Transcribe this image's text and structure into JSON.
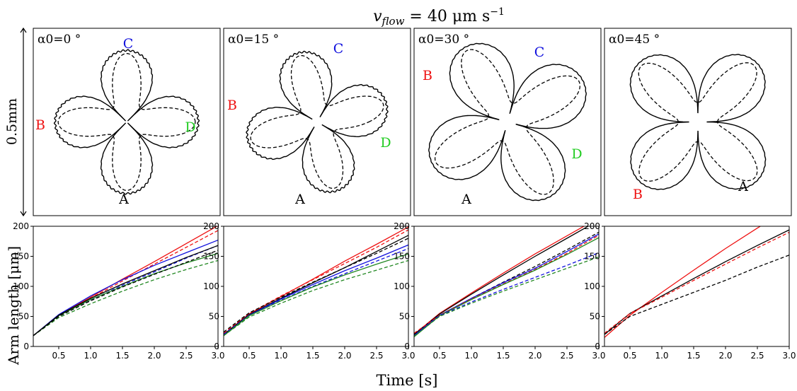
{
  "suptitle": "v_flow = 40 μm s⁻¹",
  "suptitle_parts": {
    "var": "v",
    "sub": "flow",
    "rest": " = 40 μm s",
    "sup": "−1"
  },
  "scale_label": "0.5mm",
  "y_label": "Arm length [μm]",
  "x_label": "Time [s]",
  "colors": {
    "A": "#000000",
    "B": "#ee1111",
    "C": "#1111dd",
    "D": "#22cc22",
    "line_green": "#228822"
  },
  "morph_panels": [
    {
      "angle_label": "α0=0 °",
      "angle": 0,
      "labels": [
        {
          "text": "A",
          "color": "#000000"
        },
        {
          "text": "B",
          "color": "#ee1111"
        },
        {
          "text": "C",
          "color": "#1111dd"
        },
        {
          "text": "D",
          "color": "#22cc22"
        }
      ]
    },
    {
      "angle_label": "α0=15 °",
      "angle": 15,
      "labels": [
        {
          "text": "A",
          "color": "#000000"
        },
        {
          "text": "B",
          "color": "#ee1111"
        },
        {
          "text": "C",
          "color": "#1111dd"
        },
        {
          "text": "D",
          "color": "#22cc22"
        }
      ]
    },
    {
      "angle_label": "α0=30 °",
      "angle": 30,
      "labels": [
        {
          "text": "A",
          "color": "#000000"
        },
        {
          "text": "B",
          "color": "#ee1111"
        },
        {
          "text": "C",
          "color": "#1111dd"
        },
        {
          "text": "D",
          "color": "#22cc22"
        }
      ]
    },
    {
      "angle_label": "α0=45 °",
      "angle": 45,
      "labels": [
        {
          "text": "A",
          "color": "#000000"
        },
        {
          "text": "B",
          "color": "#ee1111"
        }
      ]
    }
  ],
  "chart_data": [
    {
      "type": "line",
      "xlim": [
        0.1,
        3.0
      ],
      "ylim": [
        0,
        200
      ],
      "xticks": [
        "0.5",
        "1.0",
        "1.5",
        "2.0",
        "2.5",
        "3.0"
      ],
      "yticks": [
        "0",
        "50",
        "100",
        "150",
        "200"
      ],
      "series": [
        {
          "color": "#ee1111",
          "dash": false,
          "x": [
            0.1,
            0.5,
            1.0,
            1.5,
            2.0,
            2.5,
            3.0
          ],
          "y": [
            18,
            52,
            82,
            112,
            141,
            171,
            201
          ]
        },
        {
          "color": "#ee1111",
          "dash": true,
          "x": [
            0.1,
            0.5,
            1.0,
            1.5,
            2.0,
            2.5,
            3.0
          ],
          "y": [
            18,
            51,
            80,
            109,
            137,
            165,
            193
          ]
        },
        {
          "color": "#1111dd",
          "dash": false,
          "x": [
            0.1,
            0.5,
            1.0,
            1.5,
            2.0,
            2.5,
            3.0
          ],
          "y": [
            18,
            53,
            84,
            111,
            135,
            156,
            177
          ]
        },
        {
          "color": "#1111dd",
          "dash": true,
          "x": [
            0.1,
            0.5,
            1.0,
            1.5,
            2.0,
            2.5,
            3.0
          ],
          "y": [
            18,
            50,
            77,
            102,
            124,
            147,
            168
          ]
        },
        {
          "color": "#228822",
          "dash": false,
          "x": [
            0.1,
            0.5,
            1.0,
            1.5,
            2.0,
            2.5,
            3.0
          ],
          "y": [
            18,
            51,
            78,
            100,
            121,
            139,
            155
          ]
        },
        {
          "color": "#228822",
          "dash": true,
          "x": [
            0.1,
            0.5,
            1.0,
            1.5,
            2.0,
            2.5,
            3.0
          ],
          "y": [
            18,
            48,
            71,
            92,
            111,
            128,
            143
          ]
        },
        {
          "color": "#000000",
          "dash": false,
          "x": [
            0.1,
            0.5,
            1.0,
            1.5,
            2.0,
            2.5,
            3.0
          ],
          "y": [
            18,
            52,
            80,
            104,
            126,
            148,
            168
          ]
        },
        {
          "color": "#000000",
          "dash": true,
          "x": [
            0.1,
            0.5,
            1.0,
            1.5,
            2.0,
            2.5,
            3.0
          ],
          "y": [
            18,
            50,
            76,
            99,
            120,
            140,
            160
          ]
        }
      ]
    },
    {
      "type": "line",
      "xlim": [
        0.1,
        3.0
      ],
      "ylim": [
        0,
        200
      ],
      "xticks": [
        "0.5",
        "1.0",
        "1.5",
        "2.0",
        "2.5",
        "3.0"
      ],
      "yticks": [
        "0",
        "50",
        "100",
        "150",
        "200"
      ],
      "series": [
        {
          "color": "#ee1111",
          "dash": false,
          "x": [
            0.1,
            0.5,
            1.0,
            1.5,
            2.0,
            2.5,
            3.0
          ],
          "y": [
            20,
            54,
            83,
            112,
            142,
            170,
            199
          ]
        },
        {
          "color": "#ee1111",
          "dash": true,
          "x": [
            0.1,
            0.5,
            1.0,
            1.5,
            2.0,
            2.5,
            3.0
          ],
          "y": [
            22,
            55,
            84,
            111,
            138,
            165,
            194
          ]
        },
        {
          "color": "#000000",
          "dash": false,
          "x": [
            0.1,
            0.5,
            1.0,
            1.5,
            2.0,
            2.5,
            3.0
          ],
          "y": [
            20,
            53,
            80,
            106,
            131,
            158,
            185
          ]
        },
        {
          "color": "#000000",
          "dash": true,
          "x": [
            0.1,
            0.5,
            1.0,
            1.5,
            2.0,
            2.5,
            3.0
          ],
          "y": [
            24,
            56,
            82,
            107,
            131,
            155,
            180
          ]
        },
        {
          "color": "#1111dd",
          "dash": false,
          "x": [
            0.1,
            0.5,
            1.0,
            1.5,
            2.0,
            2.5,
            3.0
          ],
          "y": [
            18,
            52,
            79,
            103,
            126,
            147,
            169
          ]
        },
        {
          "color": "#1111dd",
          "dash": true,
          "x": [
            0.1,
            0.5,
            1.0,
            1.5,
            2.0,
            2.5,
            3.0
          ],
          "y": [
            20,
            52,
            77,
            100,
            121,
            142,
            163
          ]
        },
        {
          "color": "#228822",
          "dash": false,
          "x": [
            0.1,
            0.5,
            1.0,
            1.5,
            2.0,
            2.5,
            3.0
          ],
          "y": [
            18,
            51,
            76,
            99,
            119,
            137,
            154
          ]
        },
        {
          "color": "#228822",
          "dash": true,
          "x": [
            0.1,
            0.5,
            1.0,
            1.5,
            2.0,
            2.5,
            3.0
          ],
          "y": [
            18,
            49,
            72,
            93,
            111,
            127,
            143
          ]
        }
      ]
    },
    {
      "type": "line",
      "xlim": [
        0.1,
        3.0
      ],
      "ylim": [
        0,
        200
      ],
      "xticks": [
        "0.5",
        "1.0",
        "1.5",
        "2.0",
        "2.5",
        "3.0"
      ],
      "yticks": [
        "0",
        "50",
        "100",
        "150",
        "200"
      ],
      "series": [
        {
          "color": "#ee1111",
          "dash": false,
          "x": [
            0.1,
            0.5,
            1.0,
            1.5,
            2.0,
            2.5,
            3.0
          ],
          "y": [
            20,
            55,
            89,
            122,
            154,
            184,
            214
          ]
        },
        {
          "color": "#000000",
          "dash": false,
          "x": [
            0.1,
            0.5,
            1.0,
            1.5,
            2.0,
            2.5,
            3.0
          ],
          "y": [
            20,
            54,
            87,
            119,
            150,
            180,
            210
          ]
        },
        {
          "color": "#000000",
          "dash": true,
          "x": [
            0.1,
            0.5,
            1.0,
            1.5,
            2.0,
            2.5,
            3.0
          ],
          "y": [
            20,
            52,
            80,
            107,
            133,
            161,
            190
          ]
        },
        {
          "color": "#1111dd",
          "dash": false,
          "x": [
            0.1,
            0.5,
            1.0,
            1.5,
            2.0,
            2.5,
            3.0
          ],
          "y": [
            18,
            52,
            80,
            106,
            130,
            158,
            187
          ]
        },
        {
          "color": "#ee1111",
          "dash": true,
          "x": [
            0.1,
            0.5,
            1.0,
            1.5,
            2.0,
            2.5,
            3.0
          ],
          "y": [
            22,
            52,
            79,
            104,
            128,
            155,
            185
          ]
        },
        {
          "color": "#228822",
          "dash": false,
          "x": [
            0.1,
            0.5,
            1.0,
            1.5,
            2.0,
            2.5,
            3.0
          ],
          "y": [
            16,
            51,
            78,
            103,
            127,
            153,
            181
          ]
        },
        {
          "color": "#1111dd",
          "dash": true,
          "x": [
            0.1,
            0.5,
            1.0,
            1.5,
            2.0,
            2.5,
            3.0
          ],
          "y": [
            18,
            51,
            74,
            95,
            115,
            135,
            156
          ]
        },
        {
          "color": "#228822",
          "dash": true,
          "x": [
            0.1,
            0.5,
            1.0,
            1.5,
            2.0,
            2.5,
            3.0
          ],
          "y": [
            17,
            50,
            72,
            92,
            111,
            130,
            149
          ]
        }
      ]
    },
    {
      "type": "line",
      "xlim": [
        0.1,
        3.0
      ],
      "ylim": [
        0,
        200
      ],
      "xticks": [
        "0.5",
        "1.0",
        "1.5",
        "2.0",
        "2.5",
        "3.0"
      ],
      "yticks": [
        "0",
        "50",
        "100",
        "150",
        "200"
      ],
      "series": [
        {
          "color": "#ee1111",
          "dash": false,
          "x": [
            0.1,
            0.5,
            1.0,
            1.5,
            2.0,
            2.5,
            3.0
          ],
          "y": [
            15,
            52,
            90,
            127,
            163,
            197,
            230
          ]
        },
        {
          "color": "#000000",
          "dash": false,
          "x": [
            0.1,
            0.5,
            1.0,
            1.5,
            2.0,
            2.5,
            3.0
          ],
          "y": [
            20,
            55,
            84,
            113,
            141,
            168,
            194
          ]
        },
        {
          "color": "#ee1111",
          "dash": true,
          "x": [
            0.1,
            0.5,
            1.0,
            1.5,
            2.0,
            2.5,
            3.0
          ],
          "y": [
            22,
            55,
            82,
            110,
            137,
            164,
            190
          ]
        },
        {
          "color": "#000000",
          "dash": true,
          "x": [
            0.1,
            0.5,
            1.0,
            1.5,
            2.0,
            2.5,
            3.0
          ],
          "y": [
            20,
            50,
            70,
            90,
            110,
            132,
            152
          ]
        }
      ]
    }
  ]
}
